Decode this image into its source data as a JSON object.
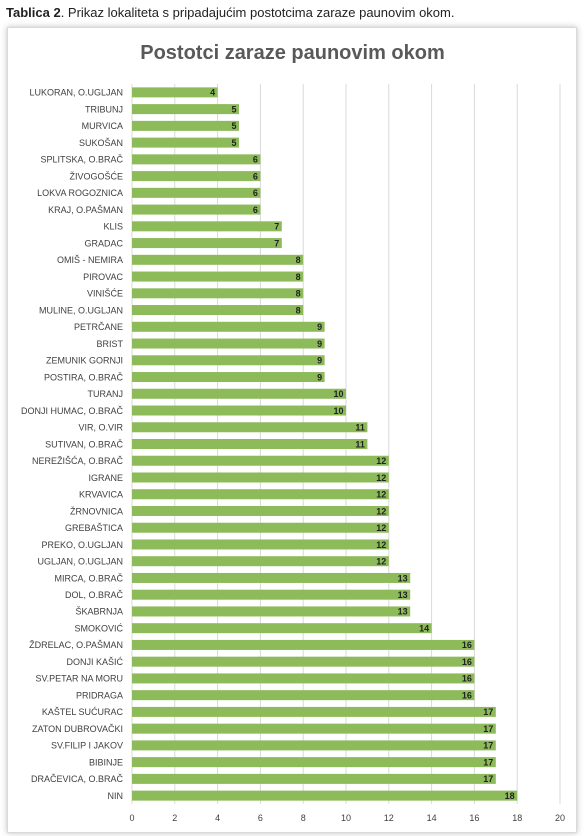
{
  "caption": {
    "label": "Tablica 2",
    "text": ". Prikaz lokaliteta s pripadajućim postotcima zaraze paunovim okom."
  },
  "chart_data": {
    "type": "bar",
    "orientation": "horizontal",
    "title": "Postotci zaraze paunovim okom",
    "xlabel": "",
    "ylabel": "",
    "xlim": [
      0,
      20
    ],
    "xticks": [
      0,
      2,
      4,
      6,
      8,
      10,
      12,
      14,
      16,
      18,
      20
    ],
    "grid": true,
    "legend": "none",
    "bar_color": "#8dbb5a",
    "categories": [
      "LUKORAN, O.UGLJAN",
      "TRIBUNJ",
      "MURVICA",
      "SUKOŠAN",
      "SPLITSKA, O.BRAČ",
      "ŽIVOGOŠĆE",
      "LOKVA ROGOZNICA",
      "KRAJ, O.PAŠMAN",
      "KLIS",
      "GRADAC",
      "OMIŠ - NEMIRA",
      "PIROVAC",
      "VINIŠĆE",
      "MULINE, O.UGLJAN",
      "PETRČANE",
      "BRIST",
      "ZEMUNIK GORNJI",
      "POSTIRA, O.BRAČ",
      "TURANJ",
      "DONJI HUMAC, O.BRAČ",
      "VIR, O.VIR",
      "SUTIVAN, O.BRAČ",
      "NEREŽIŠĆA, O.BRAČ",
      "IGRANE",
      "KRVAVICA",
      "ŽRNOVNICA",
      "GREBAŠTICA",
      "PREKO, O.UGLJAN",
      "UGLJAN, O.UGLJAN",
      "MIRCA, O.BRAČ",
      "DOL, O.BRAČ",
      "ŠKABRNJA",
      "SMOKOVIĆ",
      "ŽDRELAC, O.PAŠMAN",
      "DONJI KAŠIĆ",
      "SV.PETAR NA MORU",
      "PRIDRAGA",
      "KAŠTEL SUĆURAC",
      "ZATON DUBROVAČKI",
      "SV.FILIP I JAKOV",
      "BIBINJE",
      "DRAČEVICA, O.BRAČ",
      "NIN"
    ],
    "values": [
      4,
      5,
      5,
      5,
      6,
      6,
      6,
      6,
      7,
      7,
      8,
      8,
      8,
      8,
      9,
      9,
      9,
      9,
      10,
      10,
      11,
      11,
      12,
      12,
      12,
      12,
      12,
      12,
      12,
      13,
      13,
      13,
      14,
      16,
      16,
      16,
      16,
      17,
      17,
      17,
      17,
      17,
      18
    ]
  }
}
